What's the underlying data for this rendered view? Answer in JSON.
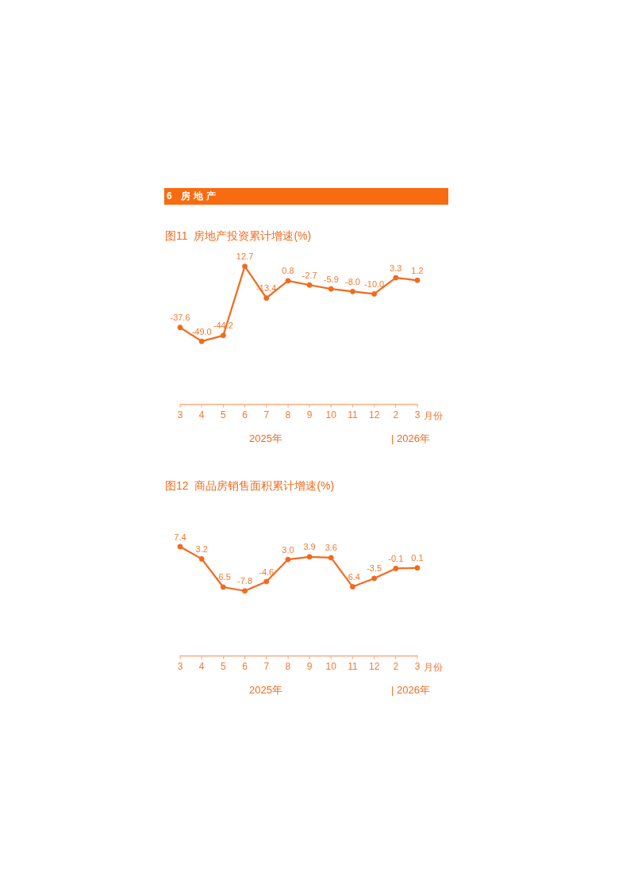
{
  "chart_data": [
    {
      "type": "other",
      "title": "6 房地产",
      "color": "#f96b10"
    },
    {
      "type": "line",
      "title": "图11 房地产投资累计增速(%)",
      "xlabel": "月份",
      "categories": [
        "3",
        "4",
        "5",
        "6",
        "7",
        "8",
        "9",
        "10",
        "11",
        "12",
        "2",
        "3"
      ],
      "values": [
        -37.6,
        -49.0,
        -44.2,
        12.7,
        -13.4,
        0.8,
        -2.7,
        -5.9,
        -8.0,
        -10.0,
        3.3,
        1.2
      ],
      "value_labels": [
        "-37.6",
        "-49.0",
        "-44.2",
        "12.7",
        "-13.4",
        "0.8",
        "-2.7",
        "-5.9",
        "-8.0",
        "-10.0",
        "3.3",
        "1.2"
      ],
      "color": "#f26b1d",
      "marker": "circle",
      "tick_labels": "x",
      "annotations": [
        "2025年",
        "| 2026年"
      ]
    },
    {
      "type": "line",
      "title": "图12 商品房销售面积累计增速(%)",
      "xlabel": "月份",
      "categories": [
        "3",
        "4",
        "5",
        "6",
        "7",
        "8",
        "9",
        "10",
        "11",
        "12",
        "2",
        "3"
      ],
      "values": [
        7.4,
        3.2,
        -6.5,
        -7.8,
        -4.6,
        3.0,
        3.9,
        3.6,
        -6.4,
        -3.5,
        -0.1,
        0.1
      ],
      "value_labels": [
        "7.4",
        "3.2",
        "-6.5",
        "-7.8",
        "-4.6",
        "3.0",
        "3.9",
        "3.6",
        "-6.4",
        "-3.5",
        "-0.1",
        "0.1"
      ],
      "color": "#f26b1d",
      "marker": "circle",
      "tick_labels": "x",
      "annotations": [
        "2025年",
        "| 2026年"
      ]
    }
  ]
}
